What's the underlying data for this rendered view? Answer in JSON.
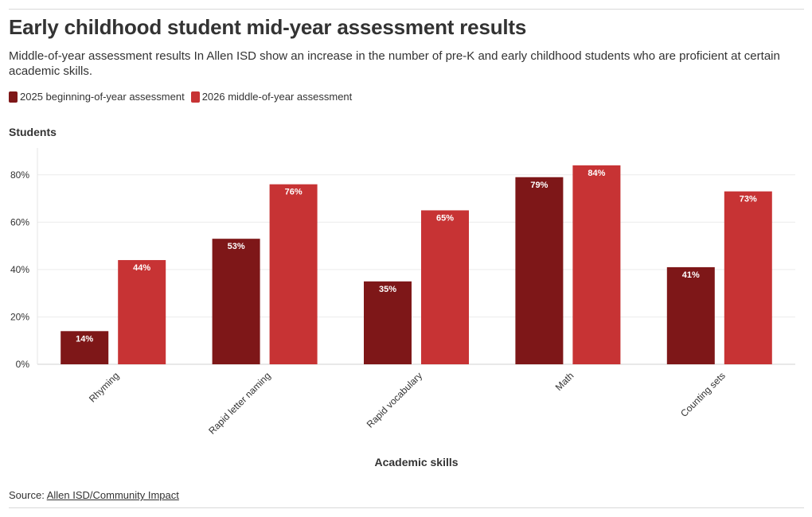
{
  "header": {
    "title": "Early childhood student mid-year assessment results",
    "subtitle": "Middle-of-year assessment results In Allen ISD show an increase in the number of pre-K and early childhood students who are proficient at certain academic skills."
  },
  "footer": {
    "source_prefix": "Source: ",
    "source_link": "Allen ISD/Community Impact"
  },
  "chart_data": {
    "type": "bar",
    "title": "Early childhood student mid-year assessment results",
    "xlabel": "Academic skills",
    "ylabel": "Students",
    "categories": [
      "Rhyming",
      "Rapid letter naming",
      "Rapid vocabulary",
      "Math",
      "Counting sets"
    ],
    "series": [
      {
        "name": "2025 beginning-of-year assessment",
        "color": "#7e1718",
        "values": [
          14,
          53,
          35,
          79,
          41
        ],
        "labels": [
          "14%",
          "53%",
          "35%",
          "79%",
          "41%"
        ]
      },
      {
        "name": "2026 middle-of-year assessment",
        "color": "#c73334",
        "values": [
          44,
          76,
          65,
          84,
          73
        ],
        "labels": [
          "44%",
          "76%",
          "65%",
          "84%",
          "73%"
        ]
      }
    ],
    "ylim": [
      0,
      90
    ],
    "yticks": [
      0,
      20,
      40,
      60,
      80
    ],
    "ytick_labels": [
      "0%",
      "20%",
      "40%",
      "60%",
      "80%"
    ],
    "grid": true,
    "legend_position": "top-left"
  }
}
